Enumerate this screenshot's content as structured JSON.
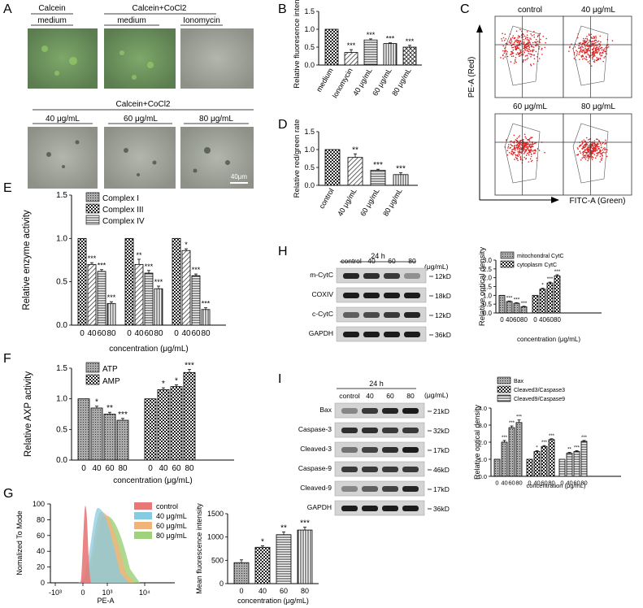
{
  "panel_letters": [
    "A",
    "B",
    "C",
    "D",
    "E",
    "F",
    "G",
    "H",
    "I"
  ],
  "panelA": {
    "top_group1": "Calcein",
    "top_group2": "Calcein+CoCl2",
    "top_sub": [
      "medium",
      "medium",
      "Ionomycin"
    ],
    "bottom_group": "Calcein+CoCl2",
    "bottom_sub": [
      "40 μg/mL",
      "60 μg/mL",
      "80 μg/mL"
    ],
    "scale_bar": "40μm"
  },
  "panelC": {
    "titles": [
      "control",
      "40 μg/mL",
      "60 μg/mL",
      "80 μg/mL"
    ],
    "ylabel": "PE-A (Red)",
    "xlabel": "FITC-A (Green)"
  },
  "panelG": {
    "ylabel": "Nomalized To Mode",
    "xlabel": "PE-A",
    "yticks": [
      "100",
      "80",
      "60",
      "40",
      "20",
      "0"
    ],
    "xticks": [
      "-10³",
      "0",
      "10³",
      "10⁴"
    ],
    "legend": [
      "control",
      "40 μg/mL",
      "60 μg/mL",
      "80 μg/mL"
    ],
    "colors": [
      "#e87878",
      "#87cbe0",
      "#f2b37a",
      "#9fd27d"
    ]
  },
  "panelH": {
    "time": "24 h",
    "unit": "(μg/mL)",
    "lanes": [
      "control",
      "40",
      "60",
      "80"
    ],
    "rows": [
      "m-CytC",
      "COXIV",
      "c-CytC",
      "GAPDH"
    ],
    "sizes": [
      "12kD",
      "18kD",
      "12kD",
      "36kD"
    ]
  },
  "panelI": {
    "time": "24 h",
    "unit": "(μg/mL)",
    "lanes": [
      "control",
      "40",
      "60",
      "80"
    ],
    "rows": [
      "Bax",
      "Caspase-3",
      "Cleaved-3",
      "Caspase-9",
      "Cleaved-9",
      "GAPDH"
    ],
    "sizes": [
      "21kD",
      "32kD",
      "17kD",
      "46kD",
      "17kD",
      "36kD"
    ]
  },
  "chart_data": [
    {
      "id": "B",
      "type": "bar",
      "categories": [
        "medium",
        "Ionomycin",
        "40 μg/mL",
        "60 μg/mL",
        "80 μg/mL"
      ],
      "values": [
        1.0,
        0.35,
        0.7,
        0.6,
        0.5
      ],
      "errors": [
        0,
        0.08,
        0.03,
        0.02,
        0.05
      ],
      "sig": [
        "",
        "***",
        "***",
        "***",
        "***"
      ],
      "ylabel": "Relative fluoresence intensity",
      "ylim": [
        0,
        1.5
      ],
      "yticks": [
        "0.0",
        "0.5",
        "1.0",
        "1.5"
      ]
    },
    {
      "id": "D",
      "type": "bar",
      "categories": [
        "control",
        "40 μg/mL",
        "60 μg/mL",
        "80 μg/mL"
      ],
      "values": [
        1.0,
        0.78,
        0.42,
        0.3
      ],
      "errors": [
        0,
        0.1,
        0.03,
        0.05
      ],
      "sig": [
        "",
        "**",
        "***",
        "***"
      ],
      "ylabel": "Relative red/green rate",
      "ylim": [
        0,
        1.5
      ],
      "yticks": [
        "0.0",
        "0.5",
        "1.0",
        "1.5"
      ]
    },
    {
      "id": "E",
      "type": "bar",
      "xlabel": "concentration (μg/mL)",
      "ylabel": "Relative enzyme activity",
      "categories": [
        "0",
        "40",
        "60",
        "80"
      ],
      "ylim": [
        0,
        1.5
      ],
      "yticks": [
        "0.0",
        "0.5",
        "1.0",
        "1.5"
      ],
      "series": [
        {
          "name": "Complex I",
          "values": [
            1.0,
            0.7,
            0.62,
            0.25
          ],
          "errors": [
            0,
            0.02,
            0.02,
            0.02
          ],
          "sig": [
            "",
            "***",
            "***",
            "***"
          ]
        },
        {
          "name": "Complex III",
          "values": [
            1.0,
            0.7,
            0.6,
            0.42
          ],
          "errors": [
            0,
            0.06,
            0.03,
            0.03
          ],
          "sig": [
            "",
            "**",
            "***",
            "***"
          ]
        },
        {
          "name": "Complex IV",
          "values": [
            1.0,
            0.86,
            0.57,
            0.18
          ],
          "errors": [
            0,
            0.02,
            0.02,
            0.02
          ],
          "sig": [
            "",
            "*",
            "***",
            "***"
          ]
        }
      ]
    },
    {
      "id": "F",
      "type": "bar",
      "xlabel": "concentration (μg/mL)",
      "ylabel": "Relative AXP activity",
      "categories": [
        "0",
        "40",
        "60",
        "80"
      ],
      "ylim": [
        0,
        1.5
      ],
      "yticks": [
        "0.0",
        "0.5",
        "1.0",
        "1.5"
      ],
      "series": [
        {
          "name": "ATP",
          "values": [
            1.0,
            0.85,
            0.75,
            0.65
          ],
          "errors": [
            0,
            0.03,
            0.03,
            0.03
          ],
          "sig": [
            "",
            "*",
            "**",
            "***"
          ]
        },
        {
          "name": "AMP",
          "values": [
            1.0,
            1.15,
            1.2,
            1.43
          ],
          "errors": [
            0,
            0.03,
            0.03,
            0.05
          ],
          "sig": [
            "",
            "*",
            "*",
            "***"
          ]
        }
      ]
    },
    {
      "id": "G",
      "type": "bar",
      "xlabel": "concentration (μg/mL)",
      "ylabel": "Mean fluorescence intensity",
      "categories": [
        "0",
        "40",
        "60",
        "80"
      ],
      "values": [
        450,
        780,
        1050,
        1150
      ],
      "errors": [
        60,
        30,
        60,
        60
      ],
      "sig": [
        "",
        "*",
        "**",
        "***"
      ],
      "ylim": [
        0,
        1500
      ],
      "yticks": [
        "0",
        "500",
        "1000",
        "1500"
      ]
    },
    {
      "id": "H",
      "type": "bar",
      "xlabel": "concentration (μg/mL)",
      "ylabel": "Relative optical density",
      "categories": [
        "0",
        "40",
        "60",
        "80"
      ],
      "ylim": [
        0,
        3.0
      ],
      "yticks": [
        "0.0",
        "0.5",
        "1.0",
        "1.5",
        "2.0",
        "2.5",
        "3.0"
      ],
      "series": [
        {
          "name": "mitochondral CytC",
          "values": [
            1.0,
            0.65,
            0.55,
            0.35
          ],
          "errors": [
            0,
            0.03,
            0.03,
            0.03
          ],
          "sig": [
            "",
            "***",
            "***",
            "***"
          ]
        },
        {
          "name": "cytoplasm CytC",
          "values": [
            1.0,
            1.35,
            1.7,
            2.1
          ],
          "errors": [
            0,
            0.05,
            0.05,
            0.07
          ],
          "sig": [
            "",
            "*",
            "***",
            "***"
          ]
        }
      ]
    },
    {
      "id": "I",
      "type": "bar",
      "xlabel": "concentration (μg/mL)",
      "ylabel": "Relative optical density",
      "categories": [
        "0",
        "40",
        "60",
        "80"
      ],
      "ylim": [
        0,
        4.0
      ],
      "yticks": [
        "0.0",
        "1.0",
        "2.0",
        "3.0",
        "4.0"
      ],
      "series": [
        {
          "name": "Bax",
          "values": [
            1.0,
            2.0,
            2.85,
            3.15
          ],
          "errors": [
            0,
            0.1,
            0.1,
            0.15
          ],
          "sig": [
            "",
            "***",
            "***",
            "***"
          ]
        },
        {
          "name": "Cleaved3/Caspase3",
          "values": [
            1.0,
            1.45,
            1.75,
            2.15
          ],
          "errors": [
            0,
            0.05,
            0.05,
            0.05
          ],
          "sig": [
            "",
            "*",
            "***",
            "***"
          ]
        },
        {
          "name": "Cleaved9/Caspase9",
          "values": [
            1.0,
            1.35,
            1.45,
            2.05
          ],
          "errors": [
            0,
            0.05,
            0.05,
            0.05
          ],
          "sig": [
            "",
            "**",
            "***",
            "***"
          ]
        }
      ]
    }
  ]
}
